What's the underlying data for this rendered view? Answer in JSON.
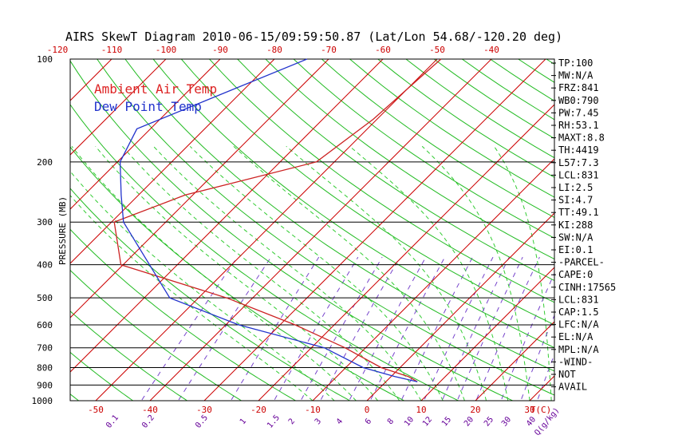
{
  "title": "AIRS SkewT Diagram 2010-06-15/09:59:50.87 (Lat/Lon 54.68/-120.20 deg)",
  "legend": {
    "air_temp": "Ambient Air Temp",
    "dew_point": "Dew Point Temp"
  },
  "colors": {
    "air_temp": "#cc2222",
    "dew_point": "#2233cc",
    "isotherm": "#cc0000",
    "dry_adiabat": "#22bb22",
    "moist_adiabat": "#33cc33",
    "mixing_ratio": "#7744cc",
    "isobar": "#000000"
  },
  "chart_data": {
    "type": "skew-t",
    "ylabel": "PRESSURE (MB)",
    "y_scale": "log",
    "ylim": [
      1000,
      100
    ],
    "pressure_ticks": [
      100,
      200,
      300,
      400,
      500,
      600,
      700,
      800,
      900,
      1000
    ],
    "temp_ticks_top": [
      "-120",
      "-110",
      "-100",
      "-90",
      "-80",
      "-70",
      "-60",
      "-50",
      "-40"
    ],
    "temp_ticks_bottom": [
      "-50",
      "-40",
      "-30",
      "-20",
      "-10",
      "0",
      "10",
      "20",
      "30",
      "T(C)"
    ],
    "mixing_ratio_labels": [
      "0.1",
      "0.2",
      "0.5",
      "1",
      "1.5",
      "2",
      "3",
      "4",
      "6",
      "8",
      "10",
      "12",
      "15",
      "20",
      "25",
      "30",
      "40",
      "Q(g/kg)"
    ],
    "series": [
      {
        "name": "Ambient Air Temp",
        "points": [
          {
            "p": 100,
            "t": -49.3
          },
          {
            "p": 150,
            "t": -50.7
          },
          {
            "p": 200,
            "t": -53.3
          },
          {
            "p": 250,
            "t": -71.4
          },
          {
            "p": 300,
            "t": -79.5
          },
          {
            "p": 400,
            "t": -70.4
          },
          {
            "p": 500,
            "t": -44.8
          },
          {
            "p": 600,
            "t": -27.2
          },
          {
            "p": 700,
            "t": -13.8
          },
          {
            "p": 800,
            "t": -3.5
          },
          {
            "p": 850,
            "t": 3.2
          },
          {
            "p": 880,
            "t": 5.8
          }
        ]
      },
      {
        "name": "Dew Point Temp",
        "points": [
          {
            "p": 100,
            "t": -74.0
          },
          {
            "p": 160,
            "t": -92.5
          },
          {
            "p": 200,
            "t": -89.5
          },
          {
            "p": 250,
            "t": -83.2
          },
          {
            "p": 300,
            "t": -77.8
          },
          {
            "p": 500,
            "t": -55.3
          },
          {
            "p": 600,
            "t": -37.6
          },
          {
            "p": 700,
            "t": -17.6
          },
          {
            "p": 800,
            "t": -6.8
          },
          {
            "p": 850,
            "t": 0.7
          },
          {
            "p": 880,
            "t": 5.8
          }
        ]
      }
    ],
    "indices": [
      "TP:100",
      "MW:N/A",
      "FRZ:841",
      "WB0:790",
      "PW:7.45",
      "RH:53.1",
      "MAXT:8.8",
      "TH:4419",
      "L57:7.3",
      "LCL:831",
      "LI:2.5",
      "SI:4.7",
      "TT:49.1",
      "KI:288",
      "SW:N/A",
      "EI:0.1",
      "-PARCEL-",
      "CAPE:0",
      "CINH:17565",
      "LCL:831",
      "CAP:1.5",
      "LFC:N/A",
      "EL:N/A",
      "MPL:N/A",
      "-WIND-",
      "NOT",
      "AVAIL"
    ]
  }
}
